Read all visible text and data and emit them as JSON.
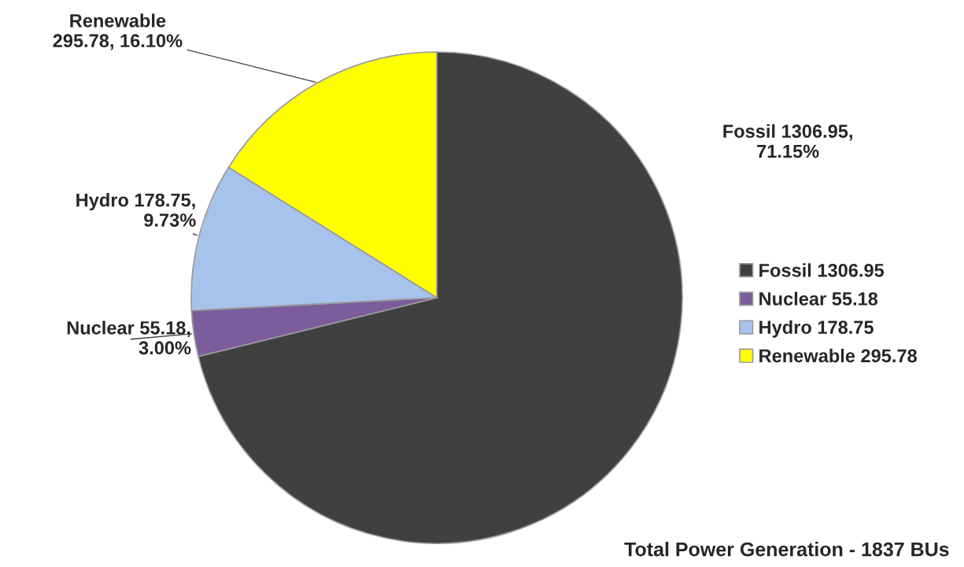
{
  "chart_data": {
    "type": "pie",
    "categories": [
      "Fossil 1306.95",
      "Nuclear 55.18",
      "Hydro 178.75",
      "Renewable 295.78"
    ],
    "values": [
      1306.95,
      55.18,
      178.75,
      295.78
    ],
    "colors": [
      "#404040",
      "#7b5c9c",
      "#a7c3ec",
      "#ffff00"
    ],
    "value_labels": [
      "Fossil 1306.95,\n71.15%",
      "Nuclear 55.18,\n3.00%",
      "Hydro 178.75,\n9.73%",
      "Renewable\n295.78, 16.10%"
    ],
    "legend": "right",
    "annotations": [
      "Total Power Generation - 1837 BUs"
    ]
  }
}
